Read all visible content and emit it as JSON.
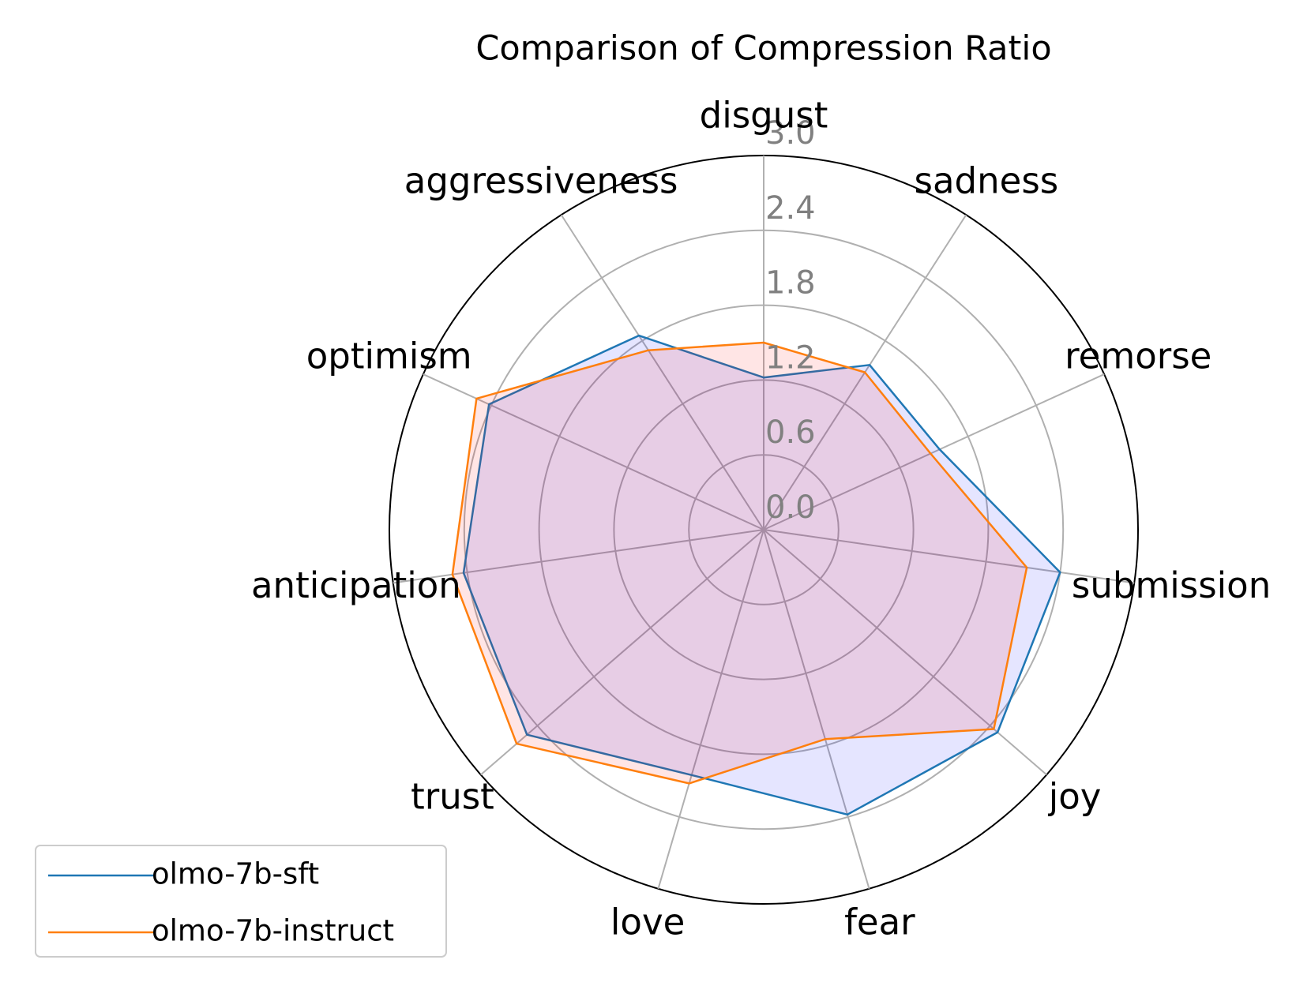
{
  "chart_data": {
    "type": "radar",
    "title": "Comparison of Compression Ratio",
    "categories": [
      "disgust",
      "sadness",
      "remorse",
      "submission",
      "joy",
      "fear",
      "love",
      "trust",
      "anticipation",
      "optimism",
      "aggressiveness"
    ],
    "series": [
      {
        "name": "olmo-7b-sft",
        "color": "#1f77b4",
        "fill": "#0000ff",
        "values": [
          1.22,
          1.57,
          1.55,
          2.4,
          2.48,
          2.38,
          2.05,
          2.51,
          2.43,
          2.42,
          1.85
        ]
      },
      {
        "name": "olmo-7b-instruct",
        "color": "#ff7f0e",
        "fill": "#ff0000",
        "values": [
          1.5,
          1.5,
          1.47,
          2.13,
          2.44,
          1.75,
          2.12,
          2.62,
          2.52,
          2.53,
          1.71
        ]
      }
    ],
    "ylim": [
      0,
      3
    ],
    "yticks": [
      {
        "value": 0,
        "label": "0.0"
      },
      0.6,
      1.2,
      1.8,
      2.4,
      {
        "value": 3,
        "label": "3.0"
      }
    ],
    "grid": true,
    "legend": "lower left"
  }
}
